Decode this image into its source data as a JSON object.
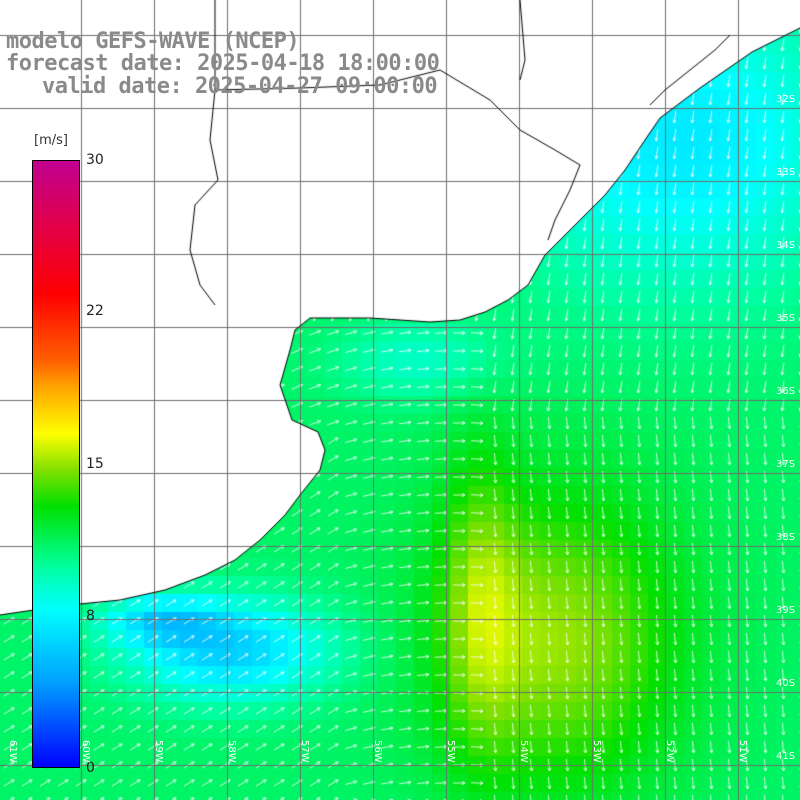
{
  "title": {
    "model": "modelo GEFS-WAVE (NCEP)",
    "forecast": "forecast date: 2025-04-18 18:00:00",
    "valid": "valid date: 2025-04-27 09:00:00"
  },
  "colorbar": {
    "unit": "[m/s]",
    "ticks": [
      "30",
      "22",
      "15",
      "8",
      "0"
    ],
    "range": [
      0,
      30
    ],
    "colors": [
      "#0000ff",
      "#00a0ff",
      "#00ffff",
      "#00e000",
      "#ffff00",
      "#ffa000",
      "#ff0000",
      "#c00090"
    ]
  },
  "axes": {
    "lon_labels": [
      "61W",
      "60W",
      "59W",
      "58W",
      "57W",
      "56W",
      "55W",
      "54W",
      "53W",
      "52W",
      "51W"
    ],
    "lat_labels": [
      "32S",
      "33S",
      "34S",
      "35S",
      "36S",
      "37S",
      "38S",
      "39S",
      "40S",
      "41S"
    ]
  },
  "style": {
    "land": "#ffffff",
    "grid": "#6e6e6e",
    "coast": "#000000",
    "arrows": "#ffffff"
  }
}
